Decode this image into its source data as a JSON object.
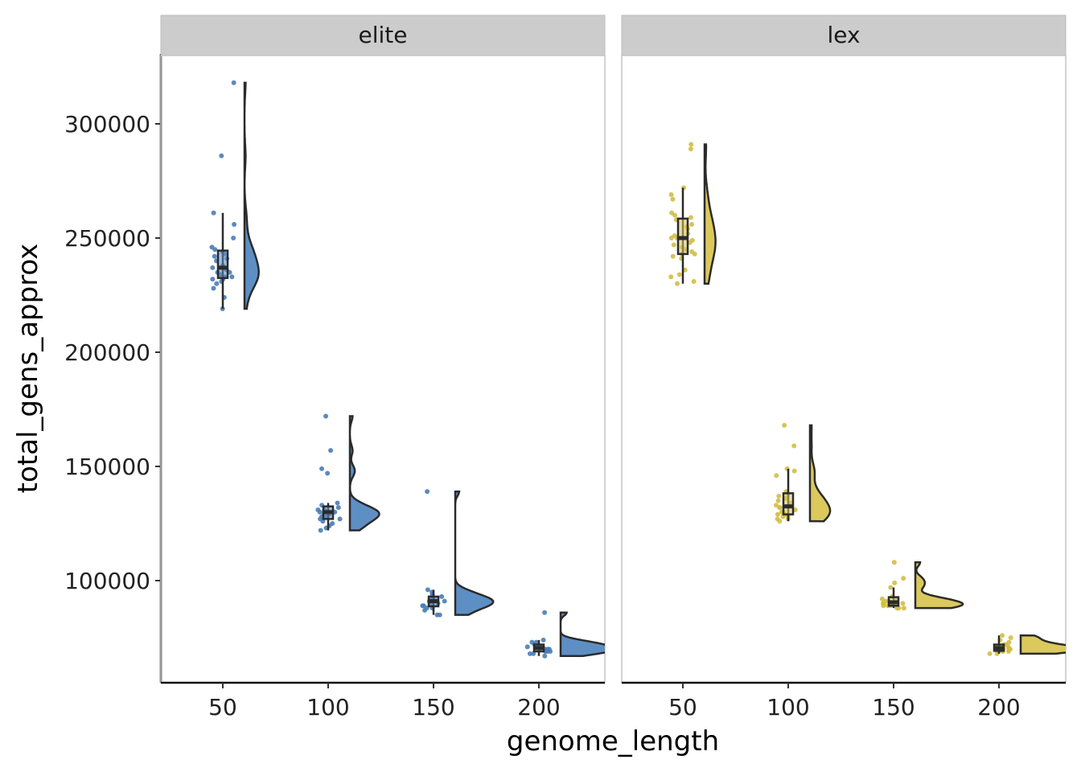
{
  "chart_data": {
    "type": "raincloud",
    "xlabel": "genome_length",
    "ylabel": "total_gens_approx",
    "ylim": [
      45000,
      325000
    ],
    "yticks": [
      100000,
      150000,
      200000,
      250000,
      300000
    ],
    "xticks": [
      50,
      100,
      150,
      200
    ],
    "facets": [
      {
        "label": "elite",
        "color": "#4a7db5",
        "fill": "#5e8fc4",
        "groups": [
          {
            "x": 50,
            "values": [
              318000,
              286000,
              261000,
              256000,
              250000,
              246000,
              245000,
              244000,
              243000,
              242000,
              241000,
              240000,
              238000,
              237000,
              236000,
              235000,
              235000,
              234000,
              233000,
              233000,
              232000,
              232000,
              231000,
              230000,
              228000,
              224000,
              219000
            ]
          },
          {
            "x": 100,
            "values": [
              172000,
              157000,
              149000,
              147000,
              134000,
              133000,
              132000,
              131000,
              131000,
              130000,
              130000,
              130000,
              129000,
              129000,
              128000,
              128000,
              127000,
              127000,
              126000,
              125000,
              124000,
              123000,
              122000
            ]
          },
          {
            "x": 150,
            "values": [
              139000,
              96000,
              95000,
              94000,
              93000,
              93000,
              92000,
              92000,
              91000,
              91000,
              91000,
              90000,
              90000,
              89000,
              89000,
              88000,
              88000,
              87000,
              85000,
              85000
            ]
          },
          {
            "x": 200,
            "values": [
              86000,
              74000,
              73000,
              73000,
              72000,
              72000,
              71000,
              71000,
              71000,
              70000,
              70000,
              70000,
              69000,
              69000,
              69000,
              68000,
              68000,
              67000
            ]
          }
        ]
      },
      {
        "label": "lex",
        "color": "#d2be45",
        "fill": "#dcc95c",
        "groups": [
          {
            "x": 50,
            "values": [
              291000,
              289000,
              272000,
              269000,
              267000,
              261000,
              260000,
              259000,
              258000,
              256000,
              255000,
              254000,
              252000,
              251000,
              250000,
              250000,
              249000,
              248000,
              247000,
              246000,
              245000,
              244000,
              243000,
              243000,
              242000,
              241000,
              236000,
              234000,
              233000,
              231000,
              230000
            ]
          },
          {
            "x": 100,
            "values": [
              168000,
              159000,
              149000,
              148000,
              146000,
              139000,
              138000,
              137000,
              136000,
              135000,
              134000,
              133000,
              132000,
              132000,
              131000,
              130000,
              130000,
              129000,
              129000,
              128000,
              128000,
              127000,
              127000,
              126000
            ]
          },
          {
            "x": 150,
            "values": [
              108000,
              101000,
              99000,
              97000,
              93000,
              92000,
              92000,
              91000,
              91000,
              90000,
              90000,
              90000,
              89000,
              89000,
              89000,
              88000,
              88000,
              88000
            ]
          },
          {
            "x": 200,
            "values": [
              76000,
              75000,
              74000,
              73000,
              72000,
              72000,
              71000,
              71000,
              71000,
              70000,
              70000,
              70000,
              70000,
              69000,
              69000,
              69000,
              68000,
              68000
            ]
          }
        ]
      }
    ]
  }
}
